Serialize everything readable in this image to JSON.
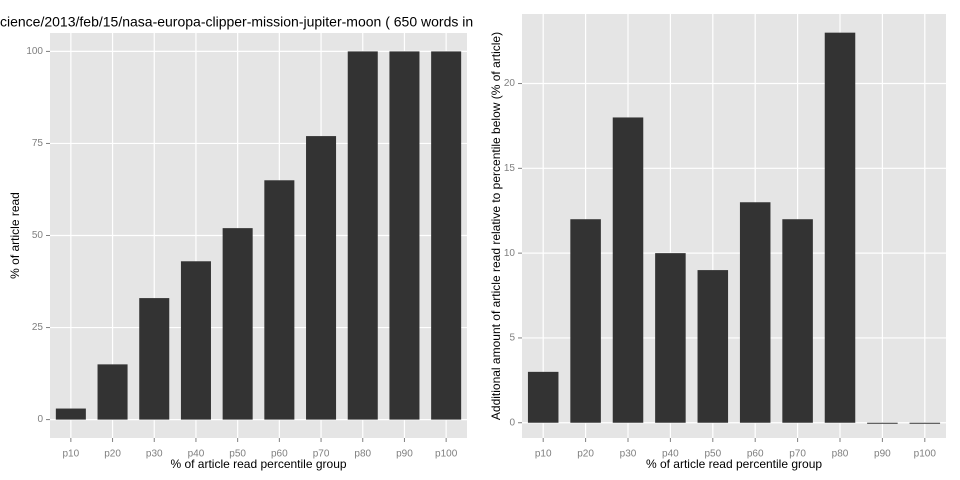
{
  "chart_data": [
    {
      "type": "bar",
      "title": "cience/2013/feb/15/nasa-europa-clipper-mission-jupiter-moon ( 650 words in",
      "x_label": "% of article read percentile group",
      "y_label": "% of article read",
      "categories": [
        "p10",
        "p20",
        "p30",
        "p40",
        "p50",
        "p60",
        "p70",
        "p80",
        "p90",
        "p100"
      ],
      "values": [
        3,
        15,
        33,
        43,
        52,
        65,
        77,
        100,
        100,
        100
      ],
      "color": "#333333",
      "ylim": [
        -5,
        105
      ],
      "yticks": [
        0,
        25,
        50,
        75,
        100
      ],
      "grid": true
    },
    {
      "type": "bar",
      "x_label": "% of article read percentile group",
      "y_label": "Additional amount of article read relative to percentile below (% of article)",
      "categories": [
        "p10",
        "p20",
        "p30",
        "p40",
        "p50",
        "p60",
        "p70",
        "p80",
        "p90",
        "p100"
      ],
      "values": [
        3,
        12,
        18,
        10,
        9,
        13,
        12,
        23,
        0,
        0
      ],
      "color": "#333333",
      "ylim": [
        -0.9,
        24.1
      ],
      "yticks": [
        0,
        5,
        10,
        15,
        20
      ],
      "grid": true
    }
  ]
}
